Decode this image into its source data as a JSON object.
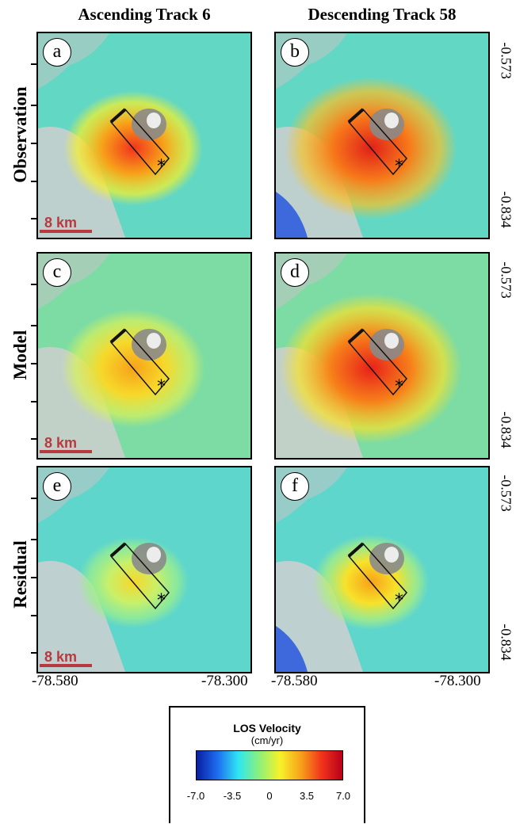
{
  "columns": [
    "Ascending Track 6",
    "Descending Track 58"
  ],
  "rows": [
    "Observation",
    "Model",
    "Residual"
  ],
  "panels": [
    {
      "letter": "a",
      "kind": "obs",
      "track": "asc"
    },
    {
      "letter": "b",
      "kind": "obs",
      "track": "desc"
    },
    {
      "letter": "c",
      "kind": "model",
      "track": "asc"
    },
    {
      "letter": "d",
      "kind": "model",
      "track": "desc"
    },
    {
      "letter": "e",
      "kind": "resid",
      "track": "asc"
    },
    {
      "letter": "f",
      "kind": "resid",
      "track": "desc"
    }
  ],
  "scalebar": "8 km",
  "lat_labels": {
    "top": "-0.573",
    "bottom": "-0.834"
  },
  "lon_labels": {
    "left": "-78.580",
    "right": "-78.300"
  },
  "legend": {
    "title": "LOS Velocity",
    "unit": "(cm/yr)",
    "ticks": [
      "-7.0",
      "-3.5",
      "0",
      "3.5",
      "7.0"
    ],
    "colors": [
      "#0a1ea0",
      "#1d6cf0",
      "#2fe6f2",
      "#8cf07a",
      "#f7f22a",
      "#f7a21a",
      "#f2331c",
      "#b8001a"
    ]
  }
}
